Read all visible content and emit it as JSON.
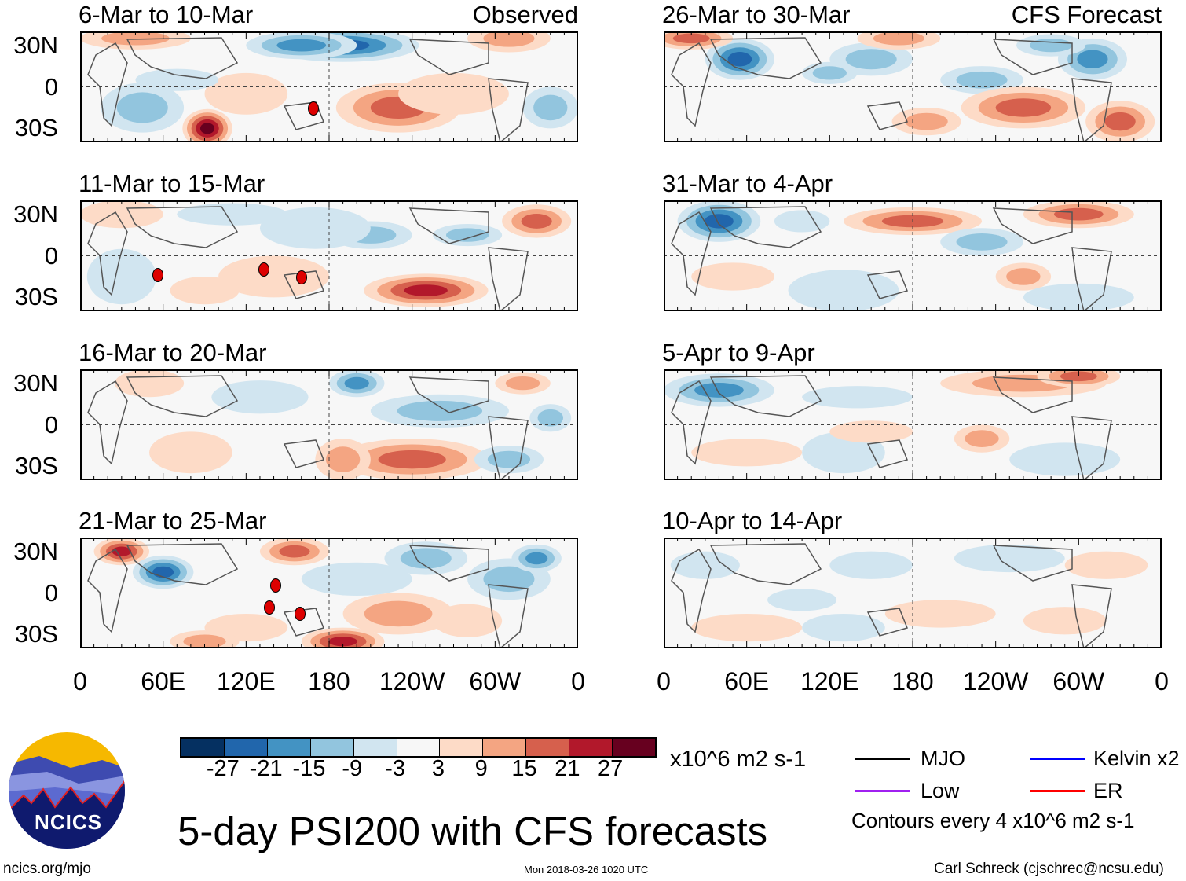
{
  "chart_data": {
    "type": "heatmap",
    "title": "5-day PSI200 with CFS forecasts",
    "units": "x10^6 m2 s-1",
    "contour_note": "Contours every 4 x10^6 m2 s-1",
    "left_column_label": "Observed",
    "right_column_label": "CFS Forecast",
    "panels_observed": [
      "6-Mar to 10-Mar",
      "11-Mar to 15-Mar",
      "16-Mar to 20-Mar",
      "21-Mar to 25-Mar"
    ],
    "panels_forecast": [
      "26-Mar to 30-Mar",
      "31-Mar to 4-Apr",
      "5-Apr to 9-Apr",
      "10-Apr to 14-Apr"
    ],
    "ytick_labels": [
      "30N",
      "0",
      "30S"
    ],
    "xtick_labels": [
      "0",
      "60E",
      "120E",
      "180",
      "120W",
      "60W",
      "0"
    ],
    "xlim": [
      0,
      360
    ],
    "ylim": [
      -40,
      40
    ],
    "colorbar_ticks": [
      "-27",
      "-21",
      "-15",
      "-9",
      "-3",
      "3",
      "9",
      "15",
      "21",
      "27"
    ],
    "colorbar_colors": [
      "#053061",
      "#2166ac",
      "#4393c3",
      "#92c5de",
      "#d1e5f0",
      "#f7f7f7",
      "#fddbc7",
      "#f4a582",
      "#d6604d",
      "#b2182b",
      "#67001f"
    ],
    "legend": [
      {
        "label": "MJO",
        "color": "#000000"
      },
      {
        "label": "Kelvin x2",
        "color": "#0000ff"
      },
      {
        "label": "Low",
        "color": "#a020f0"
      },
      {
        "label": "ER",
        "color": "#ff0000"
      }
    ]
  },
  "footer": {
    "logo_text": "NCICS",
    "url": "ncics.org/mjo",
    "timestamp": "Mon 2018-03-26 1020 UTC",
    "author": "Carl Schreck (cjschrec@ncsu.edu)"
  }
}
